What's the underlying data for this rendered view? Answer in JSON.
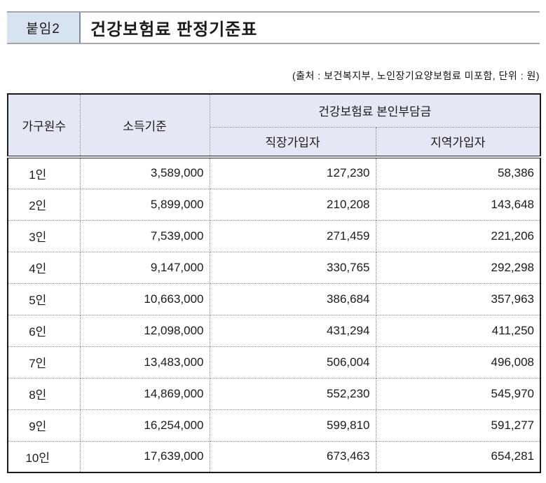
{
  "header": {
    "badge": "붙임2",
    "title": "건강보험료 판정기준표"
  },
  "source_note": "(출처 : 보건복지부, 노인장기요양보험료 미포함, 단위 : 원)",
  "table": {
    "col_headers": {
      "household": "가구원수",
      "income": "소득기준",
      "premium_group": "건강보험료 본인부담금",
      "workplace": "직장가입자",
      "regional": "지역가입자"
    },
    "rows": [
      {
        "household": "1인",
        "income": "3,589,000",
        "workplace": "127,230",
        "regional": "58,386"
      },
      {
        "household": "2인",
        "income": "5,899,000",
        "workplace": "210,208",
        "regional": "143,648"
      },
      {
        "household": "3인",
        "income": "7,539,000",
        "workplace": "271,459",
        "regional": "221,206"
      },
      {
        "household": "4인",
        "income": "9,147,000",
        "workplace": "330,765",
        "regional": "292,298"
      },
      {
        "household": "5인",
        "income": "10,663,000",
        "workplace": "386,684",
        "regional": "357,963"
      },
      {
        "household": "6인",
        "income": "12,098,000",
        "workplace": "431,294",
        "regional": "411,250"
      },
      {
        "household": "7인",
        "income": "13,483,000",
        "workplace": "506,004",
        "regional": "496,008"
      },
      {
        "household": "8인",
        "income": "14,869,000",
        "workplace": "552,230",
        "regional": "545,970"
      },
      {
        "household": "9인",
        "income": "16,254,000",
        "workplace": "599,810",
        "regional": "591,277"
      },
      {
        "household": "10인",
        "income": "17,639,000",
        "workplace": "673,463",
        "regional": "654,281"
      }
    ]
  },
  "colors": {
    "badge_bg": "#d8e3f1",
    "header_bg": "#e6e7f4",
    "border_dark": "#1b1b1b",
    "rule_gray": "#a6a6a6",
    "dotted": "#8a8a8a",
    "divider_blue": "#7d8ca3",
    "text": "#1b1b1b"
  }
}
